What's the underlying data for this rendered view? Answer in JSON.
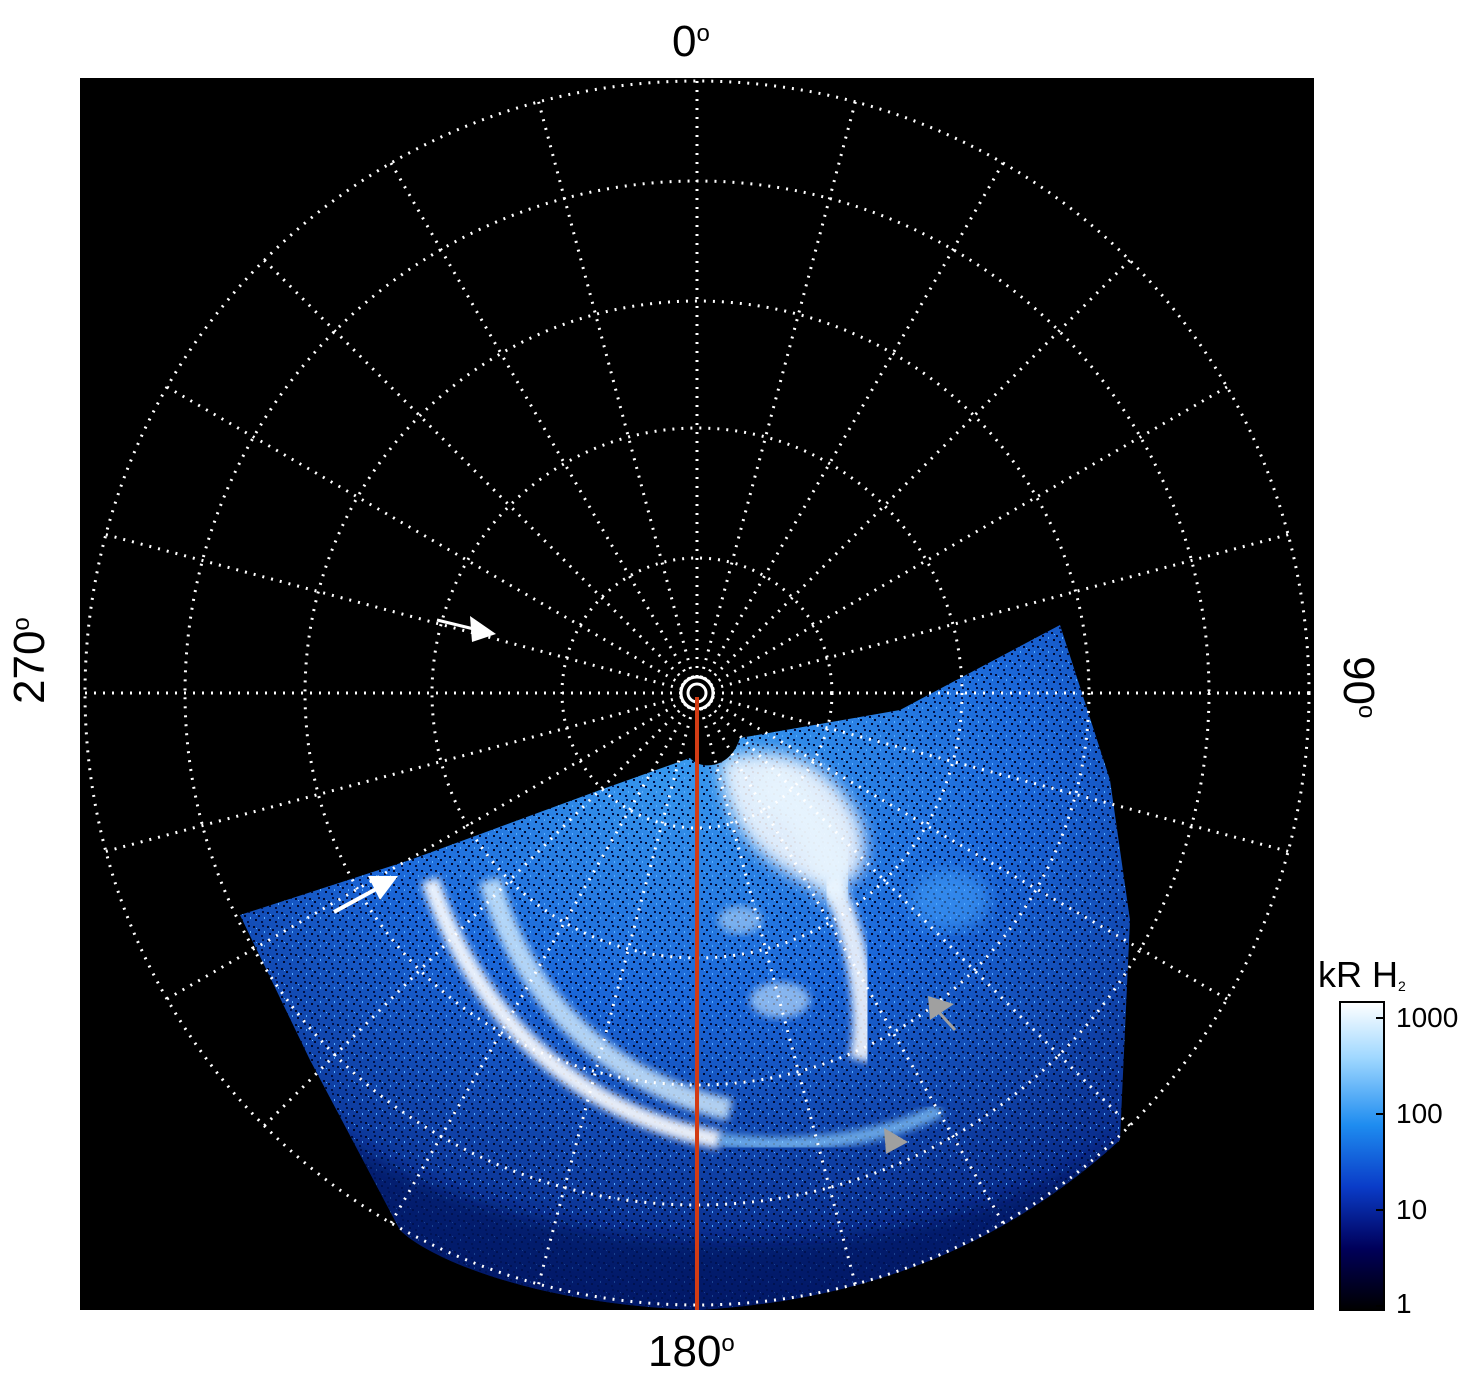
{
  "figure": {
    "azimuth_labels": {
      "top": "0",
      "right": "90",
      "bottom": "180",
      "left": "270",
      "unit_symbol": "o"
    },
    "colorbar": {
      "title_main": "kR H",
      "title_sub": "2",
      "ticks": [
        "1000",
        "100",
        "10",
        "1"
      ],
      "scale": "log",
      "colors": [
        "#000000",
        "#00005a",
        "#0a3cc8",
        "#1e8cf0",
        "#a0d8ff",
        "#ffffff"
      ]
    },
    "colors": {
      "background": "#000000",
      "grid": "#ffffff",
      "meridian_line": "#d23c14",
      "arrow_white": "#ffffff",
      "arrow_gray": "#a0a0a0",
      "aurora_bright": "#ffffff",
      "aurora_mid": "#3a9cf0",
      "aurora_dim": "#0a3cb4"
    },
    "annotations": {
      "arrows": [
        "white-arrow",
        "white-arrow",
        "gray-arrowhead",
        "gray-arrowhead"
      ]
    }
  }
}
